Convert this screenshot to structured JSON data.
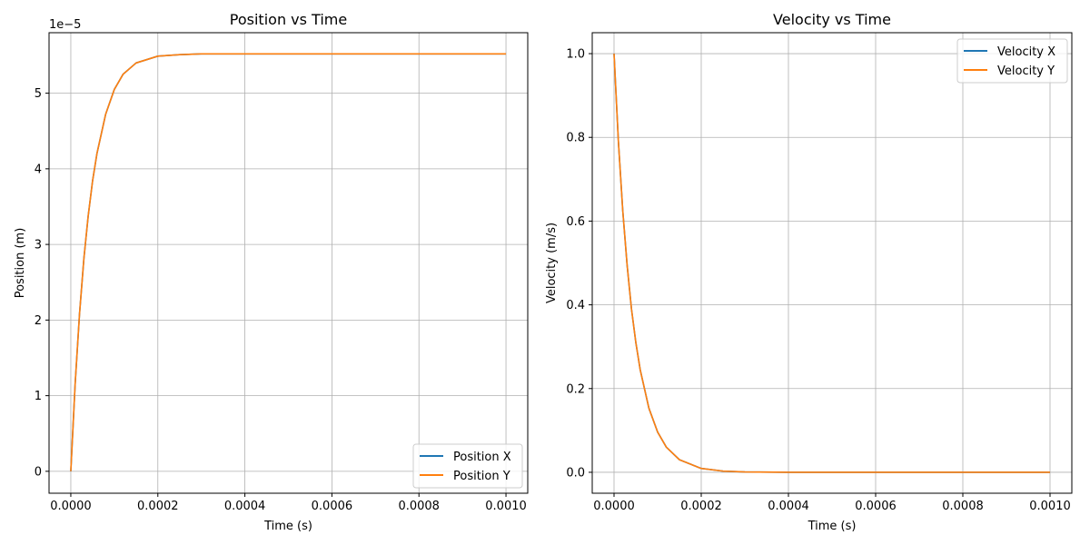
{
  "chart_data": [
    {
      "type": "line",
      "title": "Position vs Time",
      "xlabel": "Time (s)",
      "ylabel": "Position (m)",
      "y_offset_text": "1e−5",
      "xlim": [
        -5e-05,
        0.00105
      ],
      "ylim": [
        -2.9e-06,
        5.8e-05
      ],
      "xticks": [
        0.0,
        0.0002,
        0.0004,
        0.0006,
        0.0008,
        0.001
      ],
      "xtick_labels": [
        "0.0000",
        "0.0002",
        "0.0004",
        "0.0006",
        "0.0008",
        "0.0010"
      ],
      "yticks": [
        0,
        1e-05,
        2e-05,
        3e-05,
        4e-05,
        5e-05
      ],
      "ytick_labels": [
        "0",
        "1",
        "2",
        "3",
        "4",
        "5"
      ],
      "grid": true,
      "legend_position": "lower-right",
      "series": [
        {
          "name": "Position X",
          "color": "#1f77b4",
          "x": [
            0,
            1e-05,
            2e-05,
            3e-05,
            4e-05,
            5e-05,
            6e-05,
            8e-05,
            0.0001,
            0.00012,
            0.00015,
            0.0002,
            0.00025,
            0.0003,
            0.0004,
            0.0005,
            0.0006,
            0.0008,
            0.001
          ],
          "y": [
            0,
            1.16e-05,
            2.08e-05,
            2.81e-05,
            3.38e-05,
            3.84e-05,
            4.2e-05,
            4.72e-05,
            5.05e-05,
            5.25e-05,
            5.4e-05,
            5.49e-05,
            5.51e-05,
            5.52e-05,
            5.52e-05,
            5.52e-05,
            5.52e-05,
            5.52e-05,
            5.52e-05
          ]
        },
        {
          "name": "Position Y",
          "color": "#ff7f0e",
          "x": [
            0,
            1e-05,
            2e-05,
            3e-05,
            4e-05,
            5e-05,
            6e-05,
            8e-05,
            0.0001,
            0.00012,
            0.00015,
            0.0002,
            0.00025,
            0.0003,
            0.0004,
            0.0005,
            0.0006,
            0.0008,
            0.001
          ],
          "y": [
            0,
            1.16e-05,
            2.08e-05,
            2.81e-05,
            3.38e-05,
            3.84e-05,
            4.2e-05,
            4.72e-05,
            5.05e-05,
            5.25e-05,
            5.4e-05,
            5.49e-05,
            5.51e-05,
            5.52e-05,
            5.52e-05,
            5.52e-05,
            5.52e-05,
            5.52e-05,
            5.52e-05
          ]
        }
      ]
    },
    {
      "type": "line",
      "title": "Velocity vs Time",
      "xlabel": "Time (s)",
      "ylabel": "Velocity (m/s)",
      "xlim": [
        -5e-05,
        0.00105
      ],
      "ylim": [
        -0.05,
        1.05
      ],
      "xticks": [
        0.0,
        0.0002,
        0.0004,
        0.0006,
        0.0008,
        0.001
      ],
      "xtick_labels": [
        "0.0000",
        "0.0002",
        "0.0004",
        "0.0006",
        "0.0008",
        "0.0010"
      ],
      "yticks": [
        0.0,
        0.2,
        0.4,
        0.6,
        0.8,
        1.0
      ],
      "ytick_labels": [
        "0.0",
        "0.2",
        "0.4",
        "0.6",
        "0.8",
        "1.0"
      ],
      "grid": true,
      "legend_position": "upper-right",
      "series": [
        {
          "name": "Velocity X",
          "color": "#1f77b4",
          "x": [
            0,
            1e-05,
            2e-05,
            3e-05,
            4e-05,
            5e-05,
            6e-05,
            8e-05,
            0.0001,
            0.00012,
            0.00015,
            0.0002,
            0.00025,
            0.0003,
            0.0004,
            0.0005,
            0.0006,
            0.0008,
            0.001
          ],
          "y": [
            1.0,
            0.79,
            0.625,
            0.495,
            0.39,
            0.31,
            0.245,
            0.153,
            0.096,
            0.06,
            0.03,
            0.0092,
            0.0029,
            0.0009,
            0.0001,
            0.0,
            0.0,
            0.0,
            0.0
          ]
        },
        {
          "name": "Velocity Y",
          "color": "#ff7f0e",
          "x": [
            0,
            1e-05,
            2e-05,
            3e-05,
            4e-05,
            5e-05,
            6e-05,
            8e-05,
            0.0001,
            0.00012,
            0.00015,
            0.0002,
            0.00025,
            0.0003,
            0.0004,
            0.0005,
            0.0006,
            0.0008,
            0.001
          ],
          "y": [
            1.0,
            0.79,
            0.625,
            0.495,
            0.39,
            0.31,
            0.245,
            0.153,
            0.096,
            0.06,
            0.03,
            0.0092,
            0.0029,
            0.0009,
            0.0001,
            0.0,
            0.0,
            0.0,
            0.0
          ]
        }
      ]
    }
  ]
}
